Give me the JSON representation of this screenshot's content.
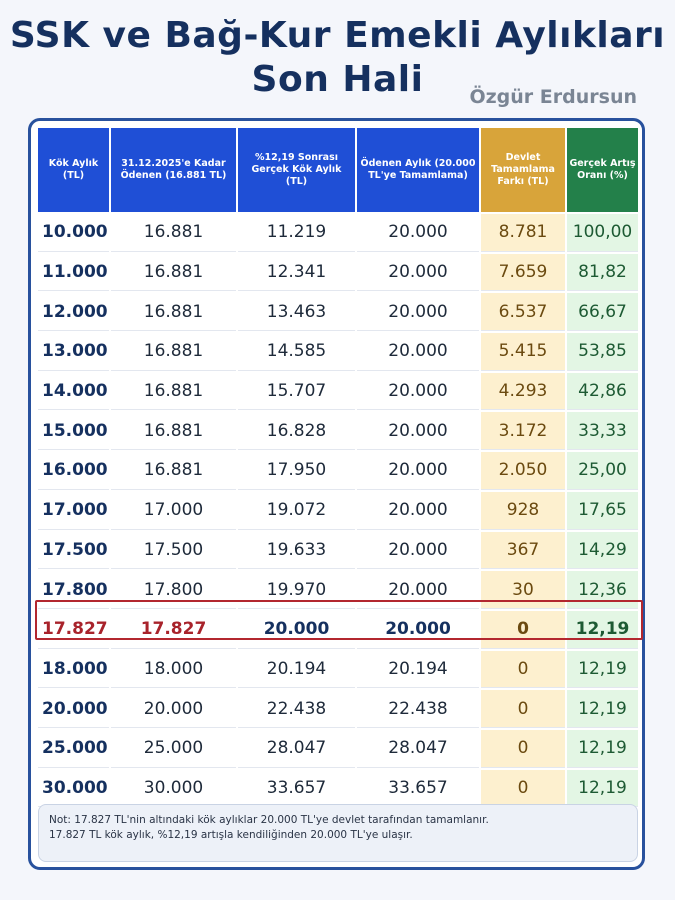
{
  "title_line1": "SSK ve Bağ-Kur Emekli Aylıkları",
  "title_line2": "Son Hali",
  "author": "Özgür Erdursun",
  "colors": {
    "header_blue": "#1f4fd6",
    "header_gold": "#d8a43a",
    "header_green": "#23804a",
    "highlight": "#b3272f"
  },
  "headers": [
    "Kök Aylık (TL)",
    "31.12.2025'e Kadar Ödenen (16.881 TL)",
    "%12,19 Sonrası Gerçek Kök Aylık (TL)",
    "Ödenen Aylık (20.000 TL'ye Tamamlama)",
    "Devlet Tamamlama Farkı (TL)",
    "Gerçek Artış Oranı (%)"
  ],
  "rows": [
    [
      "10.000",
      "16.881",
      "11.219",
      "20.000",
      "8.781",
      "100,00"
    ],
    [
      "11.000",
      "16.881",
      "12.341",
      "20.000",
      "7.659",
      "81,82"
    ],
    [
      "12.000",
      "16.881",
      "13.463",
      "20.000",
      "6.537",
      "66,67"
    ],
    [
      "13.000",
      "16.881",
      "14.585",
      "20.000",
      "5.415",
      "53,85"
    ],
    [
      "14.000",
      "16.881",
      "15.707",
      "20.000",
      "4.293",
      "42,86"
    ],
    [
      "15.000",
      "16.881",
      "16.828",
      "20.000",
      "3.172",
      "33,33"
    ],
    [
      "16.000",
      "16.881",
      "17.950",
      "20.000",
      "2.050",
      "25,00"
    ],
    [
      "17.000",
      "17.000",
      "19.072",
      "20.000",
      "928",
      "17,65"
    ],
    [
      "17.500",
      "17.500",
      "19.633",
      "20.000",
      "367",
      "14,29"
    ],
    [
      "17.800",
      "17.800",
      "19.970",
      "20.000",
      "30",
      "12,36"
    ],
    [
      "17.827",
      "17.827",
      "20.000",
      "20.000",
      "0",
      "12,19"
    ],
    [
      "18.000",
      "18.000",
      "20.194",
      "20.194",
      "0",
      "12,19"
    ],
    [
      "20.000",
      "20.000",
      "22.438",
      "22.438",
      "0",
      "12,19"
    ],
    [
      "25.000",
      "25.000",
      "28.047",
      "28.047",
      "0",
      "12,19"
    ],
    [
      "30.000",
      "30.000",
      "33.657",
      "33.657",
      "0",
      "12,19"
    ]
  ],
  "highlight_row": 10,
  "note_line1": "Not: 17.827 TL'nin altındaki kök aylıklar 20.000 TL'ye devlet tarafından tamamlanır.",
  "note_line2": "17.827 TL kök aylık, %12,19 artışla kendiliğinden 20.000 TL'ye ulaşır."
}
